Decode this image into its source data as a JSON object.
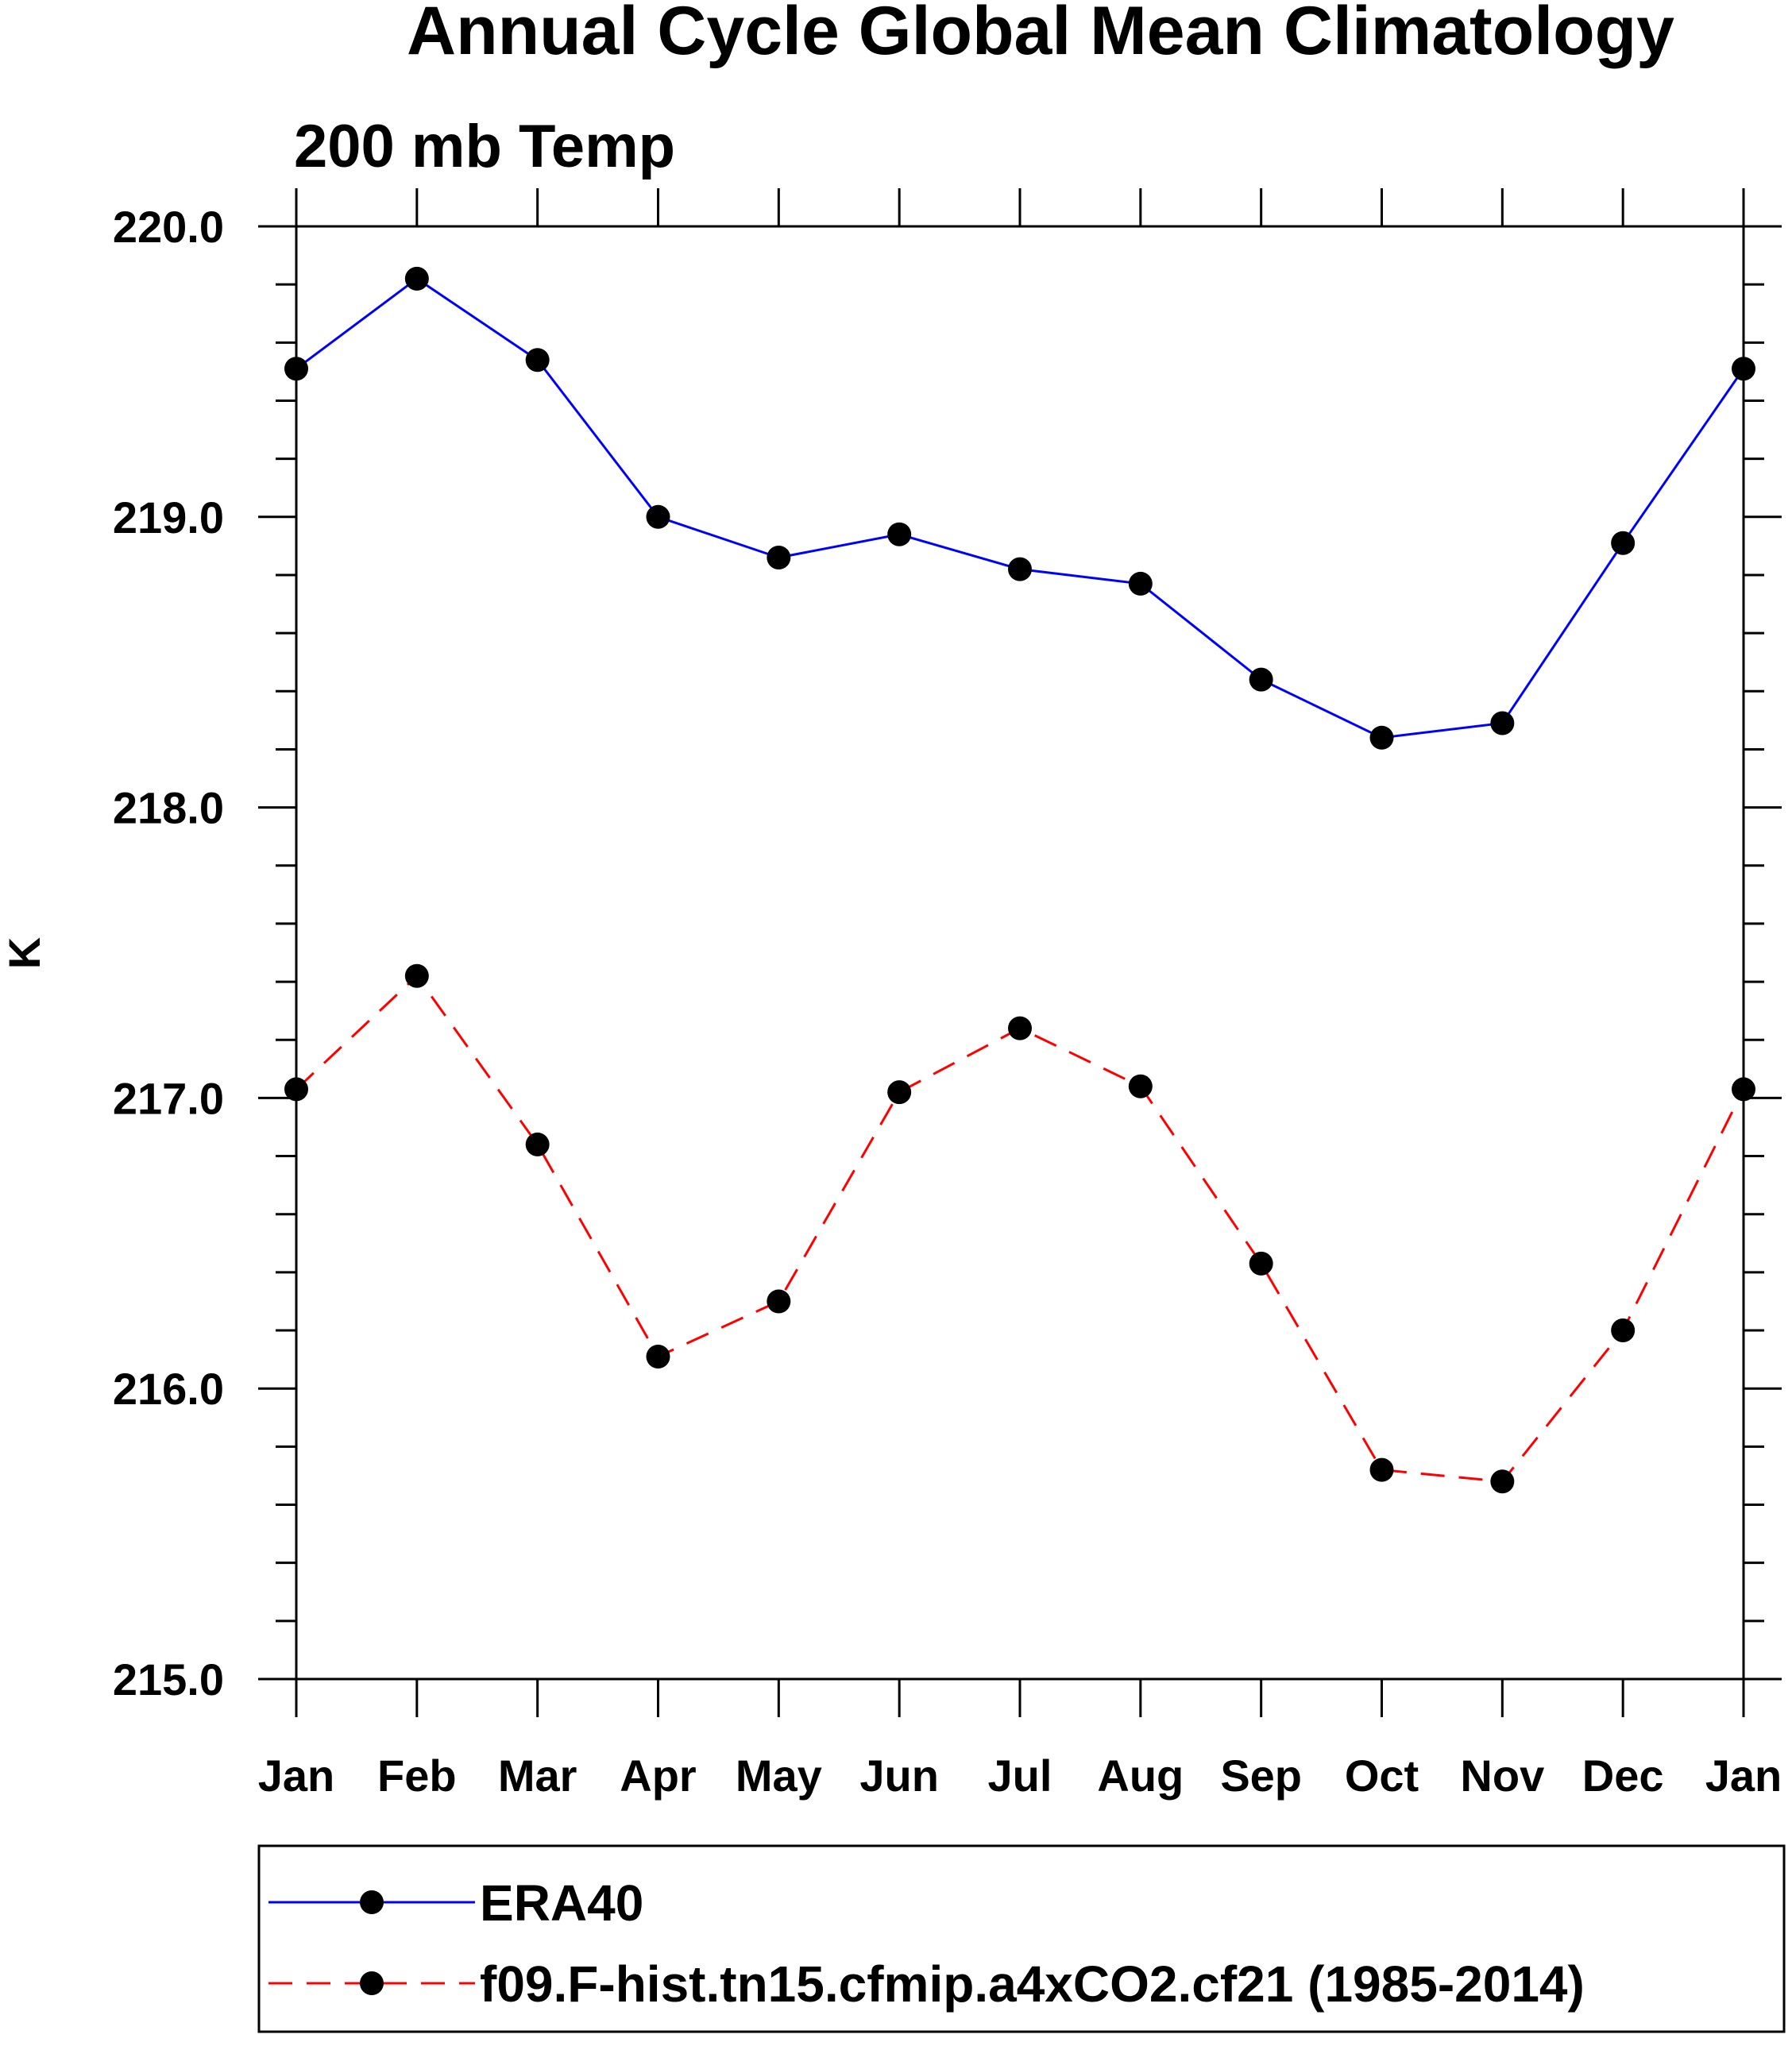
{
  "chart_data": {
    "type": "line",
    "title": "Annual Cycle Global Mean Climatology",
    "subtitle": "200 mb Temp",
    "xlabel": "",
    "ylabel": "K",
    "categories": [
      "Jan",
      "Feb",
      "Mar",
      "Apr",
      "May",
      "Jun",
      "Jul",
      "Aug",
      "Sep",
      "Oct",
      "Nov",
      "Dec",
      "Jan"
    ],
    "ylim": [
      215.0,
      220.0
    ],
    "yticks": [
      "215.0",
      "216.0",
      "217.0",
      "218.0",
      "219.0",
      "220.0"
    ],
    "grid": false,
    "legend_position": "bottom",
    "series": [
      {
        "name": "ERA40",
        "color": "#0000ff",
        "line_style": "solid",
        "marker": "filled-circle",
        "values": [
          219.51,
          219.82,
          219.54,
          219.0,
          218.86,
          218.94,
          218.82,
          218.77,
          218.44,
          218.24,
          218.29,
          218.91,
          219.51
        ]
      },
      {
        "name": "f09.F-hist.tn15.cfmip.a4xCO2.cf21 (1985-2014)",
        "color": "#ff0000",
        "line_style": "dashed",
        "marker": "filled-circle",
        "values": [
          217.03,
          217.42,
          216.84,
          216.11,
          216.3,
          217.02,
          217.24,
          217.04,
          216.43,
          215.72,
          215.68,
          216.2,
          217.03
        ]
      }
    ]
  }
}
